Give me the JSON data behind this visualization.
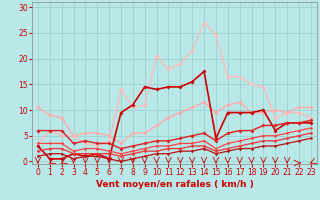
{
  "background_color": "#b8e8e8",
  "grid_color": "#99cccc",
  "xlabel": "Vent moyen/en rafales ( km/h )",
  "xlabel_color": "#cc0000",
  "xlabel_fontsize": 6.5,
  "tick_label_color": "#cc0000",
  "tick_fontsize": 5.5,
  "ylim": [
    -0.5,
    31
  ],
  "xlim": [
    -0.5,
    23.5
  ],
  "yticks": [
    0,
    5,
    10,
    15,
    20,
    25,
    30
  ],
  "xticks": [
    0,
    1,
    2,
    3,
    4,
    5,
    6,
    7,
    8,
    9,
    10,
    11,
    12,
    13,
    14,
    15,
    16,
    17,
    18,
    19,
    20,
    21,
    22,
    23
  ],
  "lines": [
    {
      "x": [
        0,
        1,
        2,
        3,
        4,
        5,
        6,
        7,
        8,
        9,
        10,
        11,
        12,
        13,
        14,
        15,
        16,
        17,
        18,
        19,
        20,
        21,
        22,
        23
      ],
      "y": [
        10.5,
        9.0,
        8.5,
        5.0,
        5.5,
        5.5,
        5.0,
        3.5,
        5.5,
        5.5,
        7.0,
        8.5,
        9.5,
        10.5,
        11.5,
        9.5,
        11.0,
        11.5,
        9.5,
        9.5,
        10.0,
        9.5,
        10.5,
        10.5
      ],
      "color": "#ffaaaa",
      "lw": 1.0,
      "marker": "D",
      "ms": 1.8
    },
    {
      "x": [
        0,
        1,
        2,
        3,
        4,
        5,
        6,
        7,
        8,
        9,
        10,
        11,
        12,
        13,
        14,
        15,
        16,
        17,
        18,
        19,
        20,
        21,
        22,
        23
      ],
      "y": [
        3.5,
        6.0,
        5.0,
        5.0,
        3.5,
        3.0,
        4.0,
        14.0,
        10.5,
        11.0,
        20.5,
        18.0,
        19.0,
        21.5,
        27.0,
        24.5,
        16.5,
        16.5,
        15.0,
        14.5,
        8.5,
        9.5,
        9.5,
        8.5
      ],
      "color": "#ffbbbb",
      "lw": 1.0,
      "marker": "D",
      "ms": 1.8
    },
    {
      "x": [
        0,
        1,
        2,
        3,
        4,
        5,
        6,
        7,
        8,
        9,
        10,
        11,
        12,
        13,
        14,
        15,
        16,
        17,
        18,
        19,
        20,
        21,
        22,
        23
      ],
      "y": [
        3.0,
        0.5,
        0.5,
        1.5,
        1.0,
        1.5,
        0.5,
        9.5,
        11.0,
        14.5,
        14.0,
        14.5,
        14.5,
        15.5,
        17.5,
        4.5,
        9.5,
        9.5,
        9.5,
        10.0,
        6.0,
        7.5,
        7.5,
        7.5
      ],
      "color": "#cc0000",
      "lw": 1.2,
      "marker": "D",
      "ms": 1.8
    },
    {
      "x": [
        0,
        1,
        2,
        3,
        4,
        5,
        6,
        7,
        8,
        9,
        10,
        11,
        12,
        13,
        14,
        15,
        16,
        17,
        18,
        19,
        20,
        21,
        22,
        23
      ],
      "y": [
        6.0,
        6.0,
        6.0,
        3.5,
        4.0,
        3.5,
        3.5,
        2.5,
        3.0,
        3.5,
        4.0,
        4.0,
        4.5,
        5.0,
        5.5,
        4.0,
        5.5,
        6.0,
        6.0,
        7.0,
        7.0,
        7.5,
        7.5,
        8.0
      ],
      "color": "#dd2222",
      "lw": 1.0,
      "marker": "D",
      "ms": 1.8
    },
    {
      "x": [
        0,
        1,
        2,
        3,
        4,
        5,
        6,
        7,
        8,
        9,
        10,
        11,
        12,
        13,
        14,
        15,
        16,
        17,
        18,
        19,
        20,
        21,
        22,
        23
      ],
      "y": [
        3.5,
        3.5,
        3.5,
        2.0,
        2.5,
        2.5,
        2.0,
        1.5,
        2.0,
        2.5,
        3.0,
        3.0,
        3.5,
        3.5,
        4.0,
        2.5,
        3.5,
        4.0,
        4.5,
        5.0,
        5.0,
        5.5,
        6.0,
        6.5
      ],
      "color": "#ff4444",
      "lw": 0.9,
      "marker": "D",
      "ms": 1.5
    },
    {
      "x": [
        0,
        1,
        2,
        3,
        4,
        5,
        6,
        7,
        8,
        9,
        10,
        11,
        12,
        13,
        14,
        15,
        16,
        17,
        18,
        19,
        20,
        21,
        22,
        23
      ],
      "y": [
        2.0,
        2.5,
        2.5,
        1.5,
        1.5,
        1.5,
        1.5,
        1.0,
        1.5,
        2.0,
        2.0,
        2.5,
        2.5,
        3.0,
        3.0,
        2.0,
        2.5,
        3.0,
        3.5,
        4.0,
        4.0,
        4.5,
        5.0,
        5.5
      ],
      "color": "#ee3333",
      "lw": 0.9,
      "marker": "D",
      "ms": 1.5
    },
    {
      "x": [
        0,
        1,
        2,
        3,
        4,
        5,
        6,
        7,
        8,
        9,
        10,
        11,
        12,
        13,
        14,
        15,
        16,
        17,
        18,
        19,
        20,
        21,
        22,
        23
      ],
      "y": [
        1.0,
        1.5,
        1.5,
        0.5,
        1.0,
        1.0,
        0.5,
        0.0,
        0.5,
        1.0,
        1.5,
        1.5,
        2.0,
        2.0,
        2.5,
        1.5,
        2.0,
        2.5,
        2.5,
        3.0,
        3.0,
        3.5,
        4.0,
        4.5
      ],
      "color": "#bb1111",
      "lw": 0.9,
      "marker": "D",
      "ms": 1.5
    }
  ],
  "arrow_color": "#cc0000",
  "arrow_directions": [
    270,
    225,
    225,
    270,
    270,
    270,
    270,
    270,
    270,
    270,
    270,
    270,
    270,
    270,
    270,
    270,
    270,
    270,
    270,
    270,
    270,
    270,
    0,
    225
  ]
}
